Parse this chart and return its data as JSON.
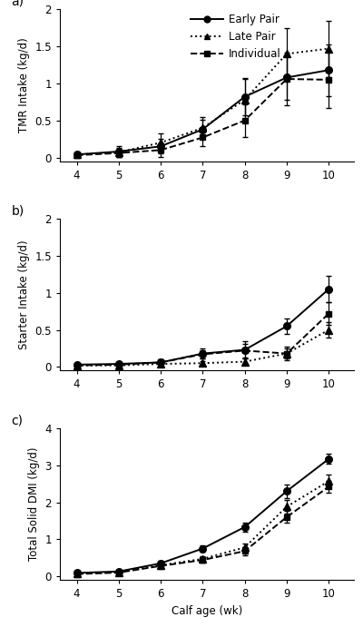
{
  "weeks": [
    4,
    5,
    6,
    7,
    8,
    9,
    10
  ],
  "tmr_early": [
    0.04,
    0.08,
    0.15,
    0.38,
    0.82,
    1.08,
    1.18
  ],
  "tmr_early_se": [
    0.03,
    0.07,
    0.1,
    0.13,
    0.25,
    0.3,
    0.35
  ],
  "tmr_late": [
    0.04,
    0.07,
    0.2,
    0.4,
    0.78,
    1.4,
    1.47
  ],
  "tmr_late_se": [
    0.03,
    0.06,
    0.12,
    0.14,
    0.28,
    0.35,
    0.38
  ],
  "tmr_indiv": [
    0.03,
    0.06,
    0.1,
    0.27,
    0.5,
    1.06,
    1.05
  ],
  "tmr_indiv_se": [
    0.03,
    0.05,
    0.09,
    0.12,
    0.22,
    0.35,
    0.38
  ],
  "starter_early": [
    0.03,
    0.04,
    0.06,
    0.18,
    0.23,
    0.55,
    1.05
  ],
  "starter_early_se": [
    0.015,
    0.02,
    0.04,
    0.07,
    0.12,
    0.1,
    0.18
  ],
  "starter_late": [
    0.02,
    0.02,
    0.04,
    0.05,
    0.07,
    0.18,
    0.5
  ],
  "starter_late_se": [
    0.01,
    0.01,
    0.02,
    0.03,
    0.04,
    0.07,
    0.1
  ],
  "starter_indiv": [
    0.02,
    0.03,
    0.06,
    0.17,
    0.22,
    0.18,
    0.72
  ],
  "starter_indiv_se": [
    0.015,
    0.02,
    0.03,
    0.06,
    0.09,
    0.09,
    0.15
  ],
  "total_early": [
    0.09,
    0.13,
    0.35,
    0.75,
    1.33,
    2.3,
    3.17
  ],
  "total_early_se": [
    0.03,
    0.04,
    0.07,
    0.09,
    0.13,
    0.18,
    0.13
  ],
  "total_late": [
    0.07,
    0.11,
    0.3,
    0.47,
    0.78,
    1.88,
    2.57
  ],
  "total_late_se": [
    0.025,
    0.04,
    0.06,
    0.08,
    0.11,
    0.18,
    0.18
  ],
  "total_indiv": [
    0.06,
    0.1,
    0.28,
    0.44,
    0.68,
    1.6,
    2.42
  ],
  "total_indiv_se": [
    0.025,
    0.035,
    0.06,
    0.07,
    0.11,
    0.16,
    0.16
  ],
  "label_a": "a)",
  "label_b": "b)",
  "label_c": "c)",
  "ylabel_a": "TMR Intake (kg/d)",
  "ylabel_b": "Starter Intake (kg/d)",
  "ylabel_c": "Total Solid DMI (kg/d)",
  "xlabel": "Calf age (wk)",
  "ylim_a": [
    -0.05,
    2.0
  ],
  "ylim_b": [
    -0.05,
    2.0
  ],
  "ylim_c": [
    -0.1,
    4.0
  ],
  "yticks_a": [
    0,
    0.5,
    1.0,
    1.5,
    2.0
  ],
  "yticks_b": [
    0,
    0.5,
    1.0,
    1.5,
    2.0
  ],
  "yticks_c": [
    0,
    1,
    2,
    3,
    4
  ],
  "legend_early": "Early Pair",
  "legend_late": "Late Pair",
  "legend_indiv": "Individual"
}
